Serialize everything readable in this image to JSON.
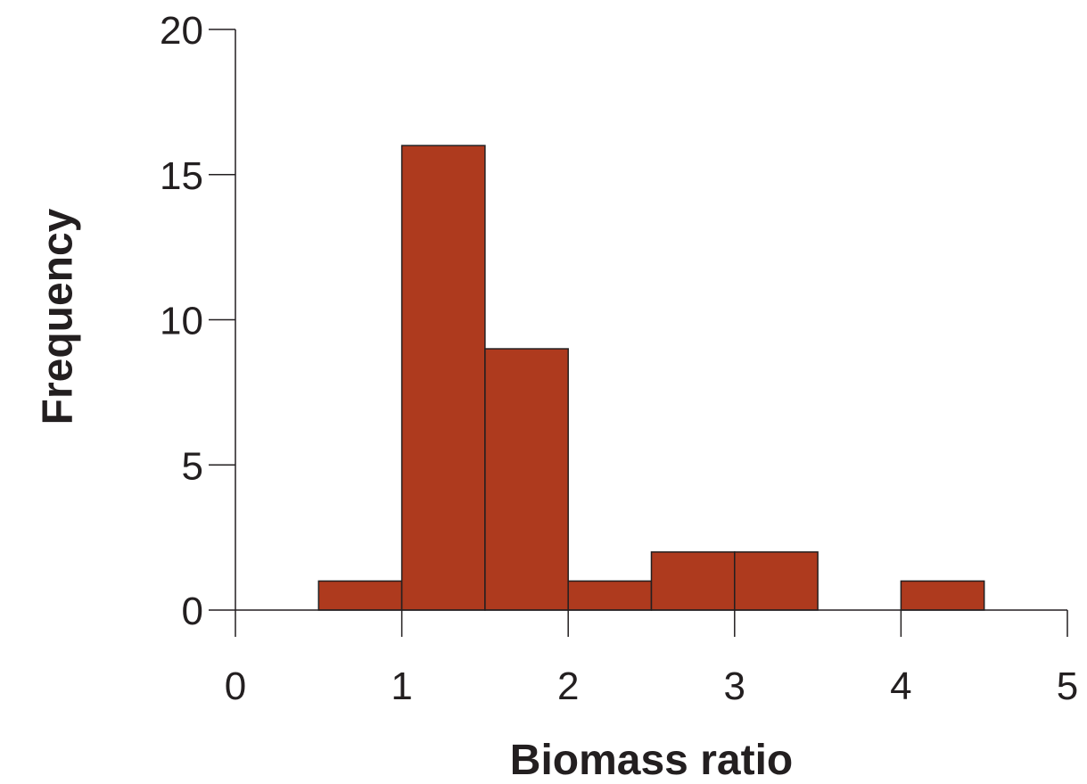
{
  "chart_data": {
    "type": "bar",
    "subtype": "histogram",
    "bin_edges": [
      0.5,
      1,
      1.5,
      2,
      2.5,
      3,
      3.5,
      4,
      4.5
    ],
    "bins": [
      {
        "x0": 0.5,
        "x1": 1.0,
        "value": 1
      },
      {
        "x0": 1.0,
        "x1": 1.5,
        "value": 16
      },
      {
        "x0": 1.5,
        "x1": 2.0,
        "value": 9
      },
      {
        "x0": 2.0,
        "x1": 2.5,
        "value": 1
      },
      {
        "x0": 2.5,
        "x1": 3.0,
        "value": 2
      },
      {
        "x0": 3.0,
        "x1": 3.5,
        "value": 2
      },
      {
        "x0": 3.5,
        "x1": 4.0,
        "value": 0
      },
      {
        "x0": 4.0,
        "x1": 4.5,
        "value": 1
      }
    ],
    "xlabel": "Biomass ratio",
    "ylabel": "Frequency",
    "xlim": [
      0,
      5
    ],
    "ylim": [
      0,
      20
    ],
    "x_ticks": [
      "0",
      "1",
      "2",
      "3",
      "4",
      "5"
    ],
    "y_ticks": [
      "0",
      "5",
      "10",
      "15",
      "20"
    ],
    "grid": false,
    "legend": "none",
    "bar_color": "#ae3a1e",
    "axis_color": "#231f20"
  }
}
